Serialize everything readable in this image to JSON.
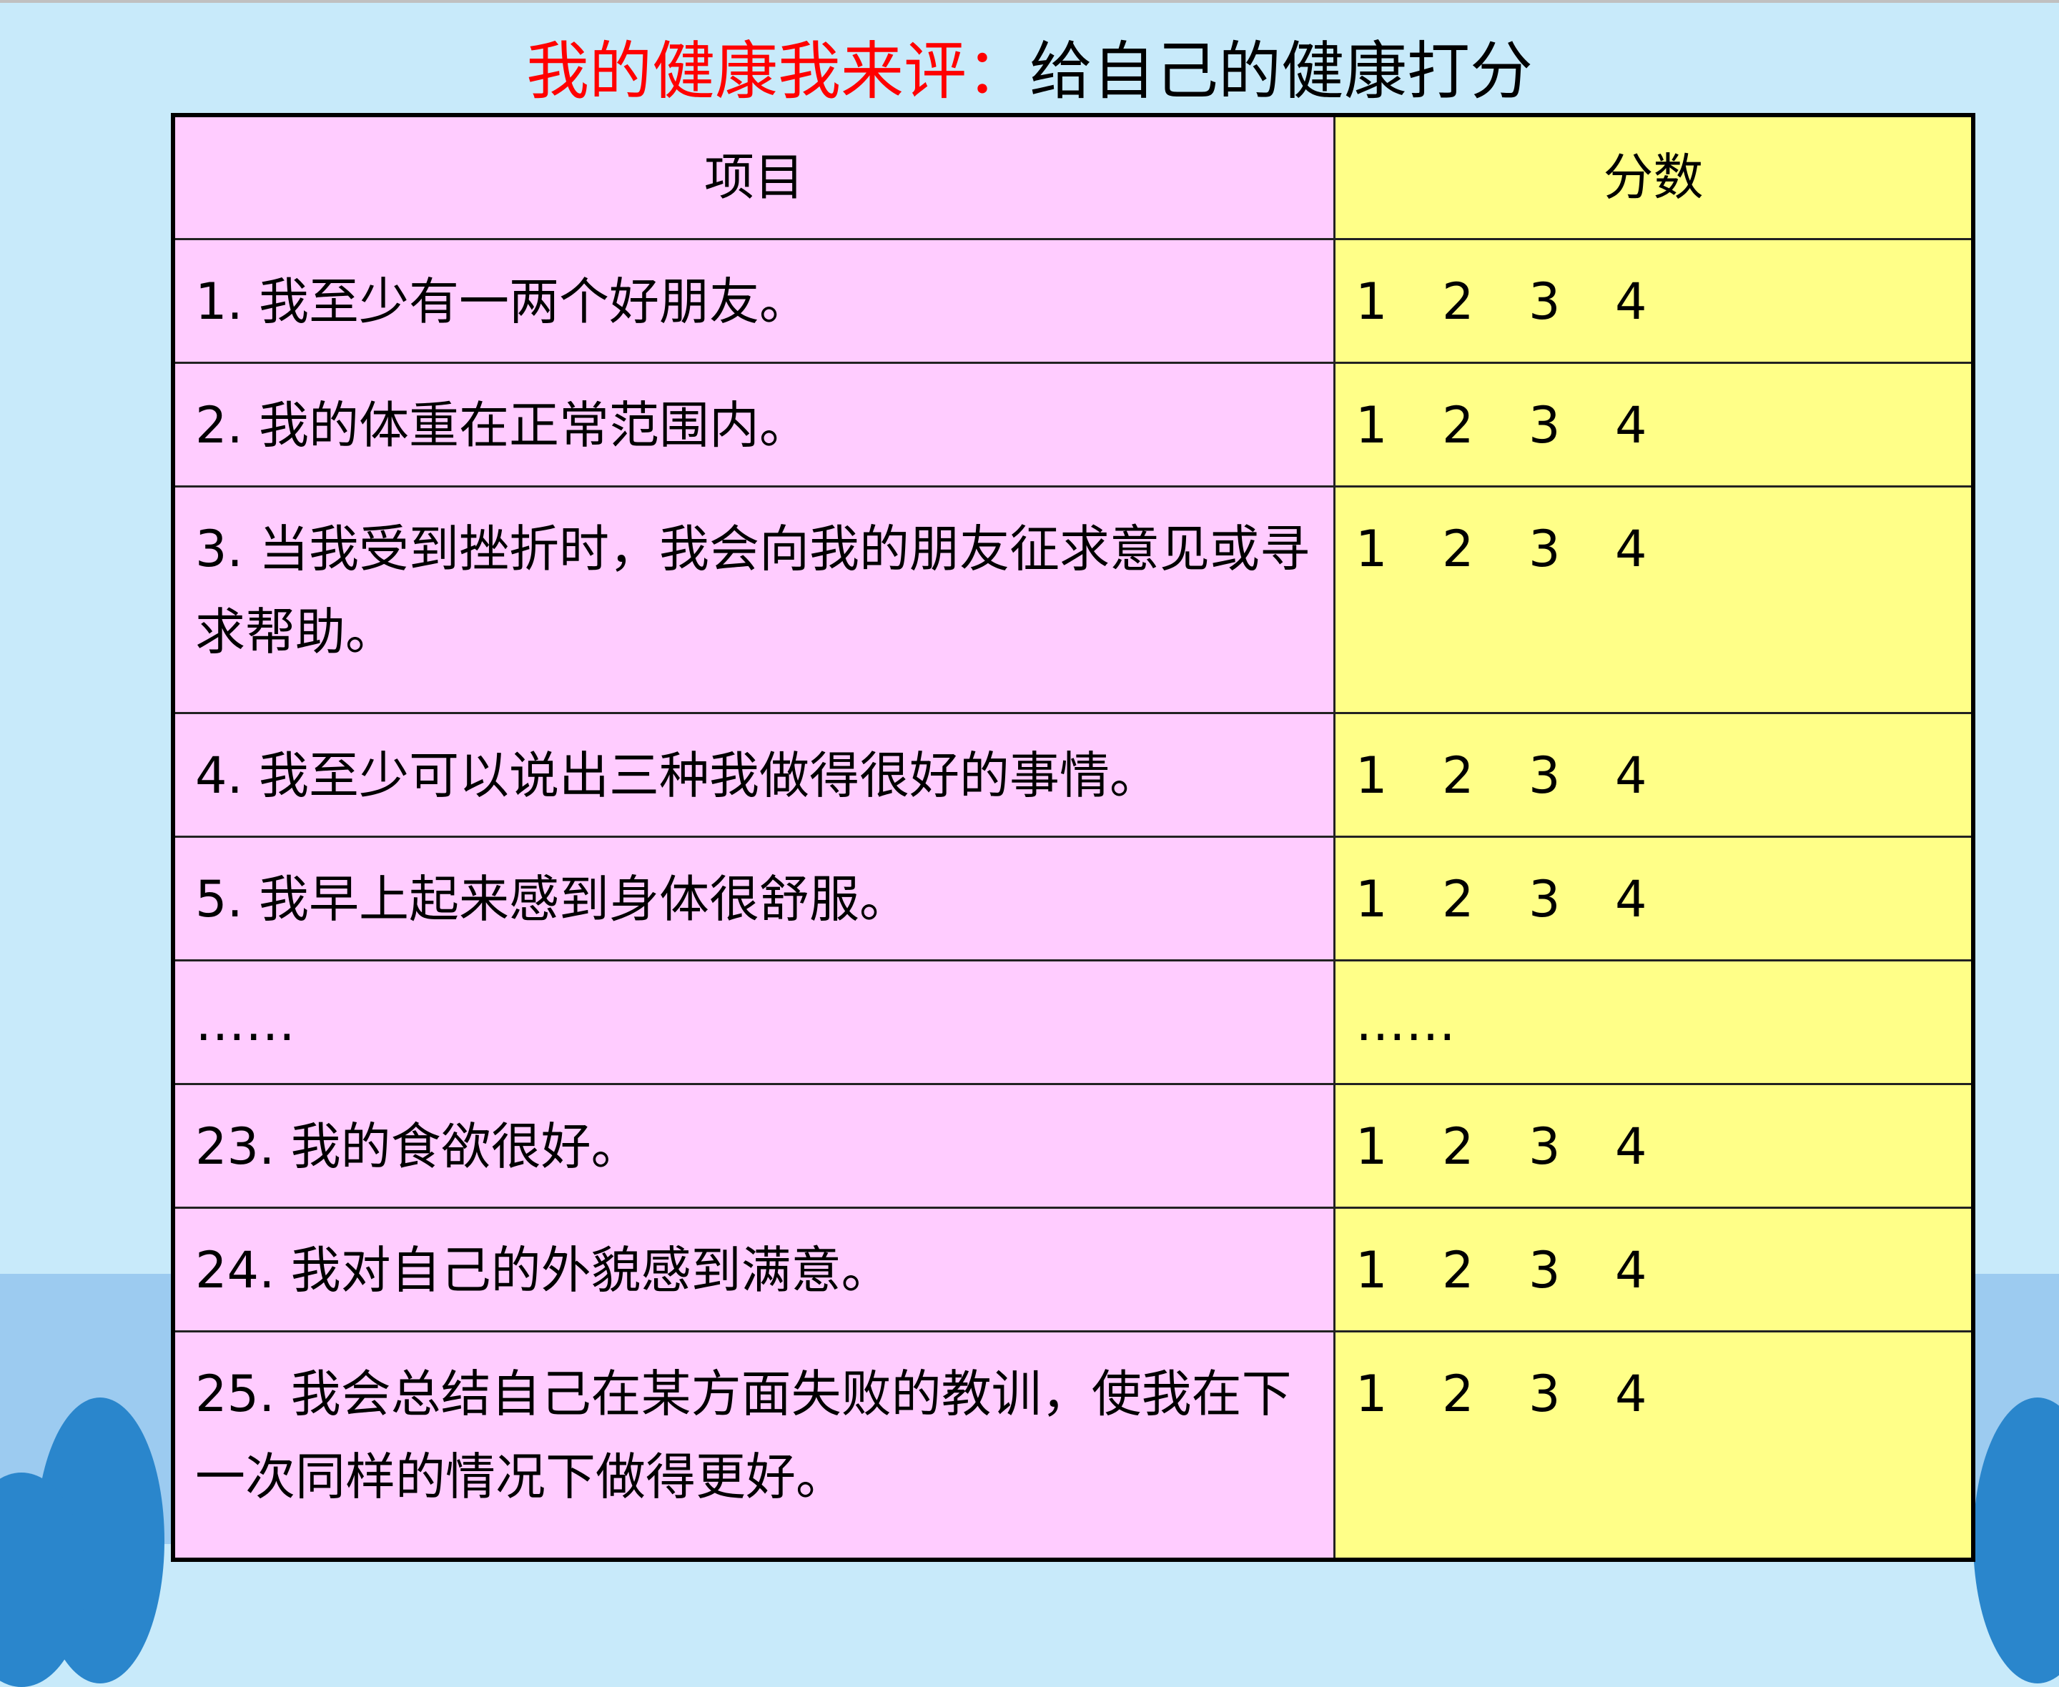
{
  "title": {
    "red_part": "我的健康我来评：",
    "black_part": "给自己的健康打分"
  },
  "colors": {
    "title_red": "#ff0000",
    "item_column": "#ffccff",
    "score_column": "#ffff88",
    "background": "#c8eafa"
  },
  "table": {
    "headers": [
      "项目",
      "分数"
    ],
    "rows": [
      {
        "item": "1. 我至少有一两个好朋友。",
        "scores": [
          "1",
          "2",
          "3",
          "4"
        ]
      },
      {
        "item": "2. 我的体重在正常范围内。",
        "scores": [
          "1",
          "2",
          "3",
          "4"
        ]
      },
      {
        "item": "3. 当我受到挫折时，我会向我的朋友征求意见或寻求帮助。",
        "scores": [
          "1",
          "2",
          "3",
          "4"
        ]
      },
      {
        "item": "4. 我至少可以说出三种我做得很好的事情。",
        "scores": [
          "1",
          "2",
          "3",
          "4"
        ]
      },
      {
        "item": "5. 我早上起来感到身体很舒服。",
        "scores": [
          "1",
          "2",
          "3",
          "4"
        ]
      },
      {
        "item": "……",
        "score_text": "……"
      },
      {
        "item": "23. 我的食欲很好。",
        "scores": [
          "1",
          "2",
          "3",
          "4"
        ]
      },
      {
        "item": "24. 我对自己的外貌感到满意。",
        "scores": [
          "1",
          "2",
          "3",
          "4"
        ]
      },
      {
        "item": "25. 我会总结自己在某方面失败的教训，使我在下一次同样的情况下做得更好。",
        "scores": [
          "1",
          "2",
          "3",
          "4"
        ]
      }
    ]
  }
}
